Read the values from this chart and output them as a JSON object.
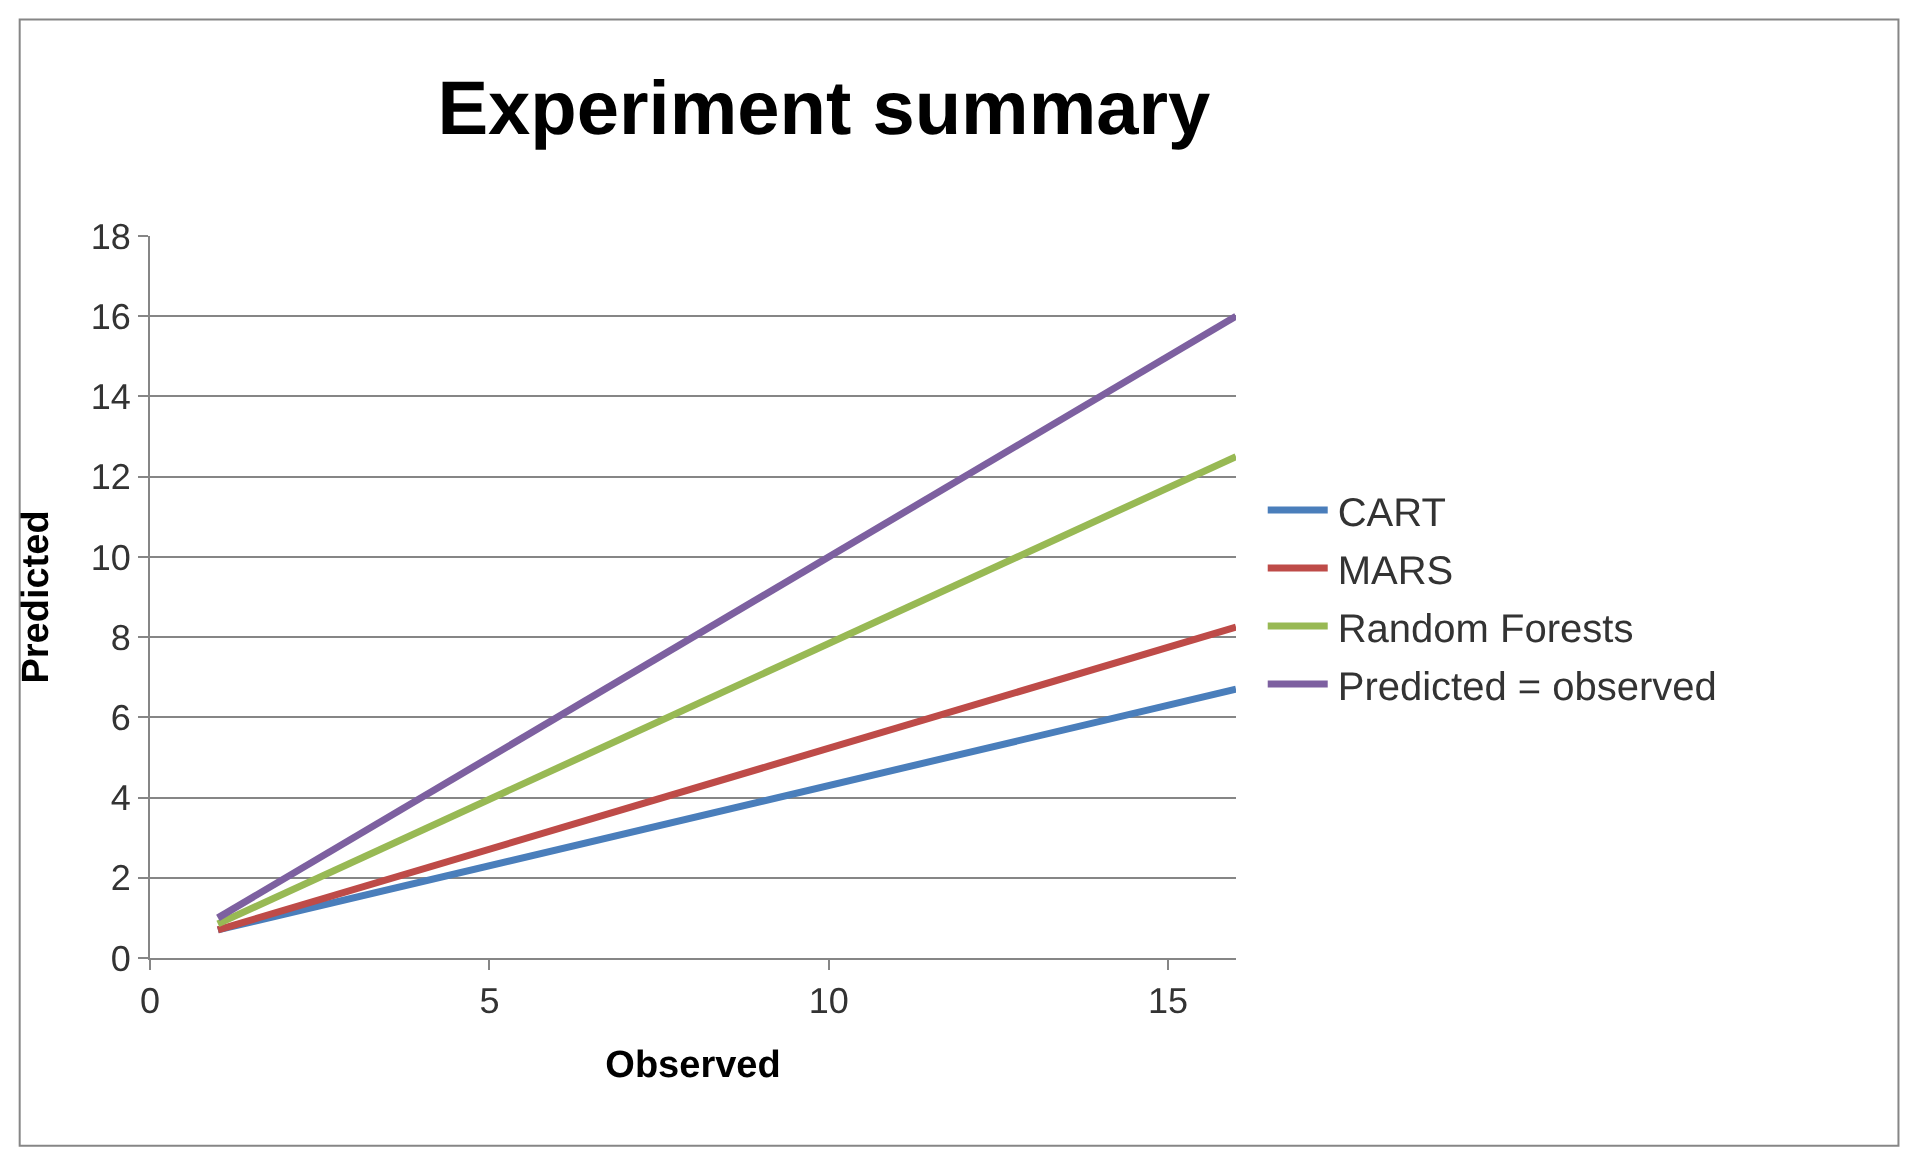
{
  "chart_data": {
    "type": "line",
    "title": "Experiment summary",
    "xlabel": "Observed",
    "ylabel": "Predicted",
    "xlim": [
      0,
      16
    ],
    "xticks": [
      0,
      5,
      10,
      15
    ],
    "ylim": [
      0,
      18
    ],
    "yticks": [
      0,
      2,
      4,
      6,
      8,
      10,
      12,
      14,
      16,
      18
    ],
    "grid": "y",
    "legend": "right",
    "marker": "none",
    "line_style": "solid",
    "x": [
      1,
      16
    ],
    "series": [
      {
        "name": "CART",
        "color": "#4a7ebb",
        "values": [
          0.7,
          6.7
        ]
      },
      {
        "name": "MARS",
        "color": "#be4b48",
        "values": [
          0.7,
          8.25
        ]
      },
      {
        "name": "Random Forests",
        "color": "#98b954",
        "values": [
          0.85,
          12.5
        ]
      },
      {
        "name": "Predicted = observed",
        "color": "#7d60a0",
        "values": [
          1,
          16
        ]
      }
    ]
  }
}
